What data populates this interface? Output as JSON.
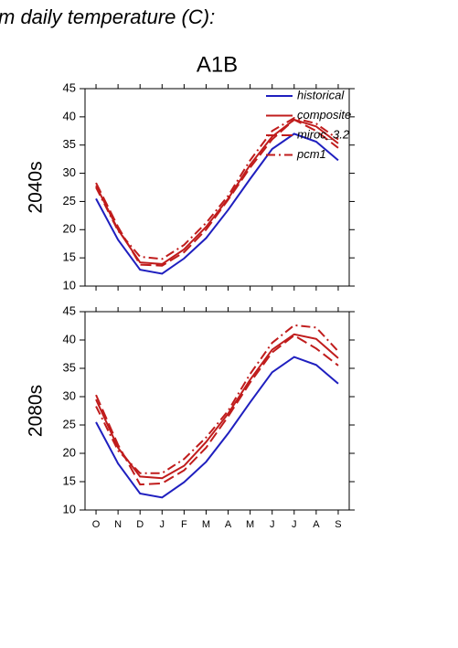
{
  "header": {
    "title": "m daily temperature (C):"
  },
  "chart_data": [
    {
      "type": "line",
      "title": "A1B",
      "ylabel": "2040s",
      "ylim": [
        10,
        45
      ],
      "yticks": [
        10,
        15,
        20,
        25,
        30,
        35,
        40,
        45
      ],
      "legend": "upper right",
      "series": [
        {
          "name": "historical",
          "color": "#1f1fbf",
          "linestyle": "solid",
          "values": [
            25.5,
            18.2,
            12.9,
            12.2,
            14.9,
            18.5,
            23.5,
            29,
            34.3,
            37,
            35.6,
            32.3
          ]
        },
        {
          "name": "composite",
          "color": "#c01c1c",
          "linestyle": "solid",
          "values": [
            27.8,
            20,
            14.2,
            13.9,
            16.5,
            20.5,
            25.5,
            31.5,
            36.5,
            39.5,
            38.3,
            35.3
          ]
        },
        {
          "name": "miroc_3.2",
          "color": "#c01c1c",
          "linestyle": "dashed",
          "values": [
            28.3,
            20.5,
            13.8,
            13.6,
            16,
            20,
            25.3,
            31,
            36,
            39.5,
            37.5,
            34.5
          ]
        },
        {
          "name": "pcm1",
          "color": "#c01c1c",
          "linestyle": "dashdot",
          "values": [
            27.5,
            19.8,
            15.2,
            14.8,
            17.3,
            21.2,
            26,
            32.3,
            37.5,
            39.8,
            38.8,
            36
          ]
        }
      ]
    },
    {
      "type": "line",
      "ylabel": "2080s",
      "ylim": [
        10,
        45
      ],
      "yticks": [
        10,
        15,
        20,
        25,
        30,
        35,
        40,
        45
      ],
      "categories": [
        "O",
        "N",
        "D",
        "J",
        "F",
        "M",
        "A",
        "M",
        "J",
        "J",
        "A",
        "S"
      ],
      "series": [
        {
          "color": "#1f1fbf",
          "linestyle": "solid",
          "values": [
            25.5,
            18.2,
            12.9,
            12.2,
            14.9,
            18.5,
            23.5,
            29,
            34.3,
            37,
            35.6,
            32.3
          ]
        },
        {
          "color": "#c01c1c",
          "linestyle": "solid",
          "values": [
            29.5,
            21,
            15.9,
            15.6,
            17.8,
            22,
            27,
            33,
            38.3,
            41,
            40.2,
            36.8
          ]
        },
        {
          "color": "#c01c1c",
          "linestyle": "dashed",
          "values": [
            30.3,
            21.5,
            14.5,
            14.7,
            17,
            21,
            26.5,
            32.5,
            37.8,
            40.8,
            38.5,
            35.5
          ]
        },
        {
          "color": "#c01c1c",
          "linestyle": "dashdot",
          "values": [
            28.3,
            20.5,
            16.5,
            16.5,
            19,
            22.8,
            27.5,
            34,
            39.5,
            42.6,
            42.2,
            38
          ]
        }
      ]
    }
  ]
}
